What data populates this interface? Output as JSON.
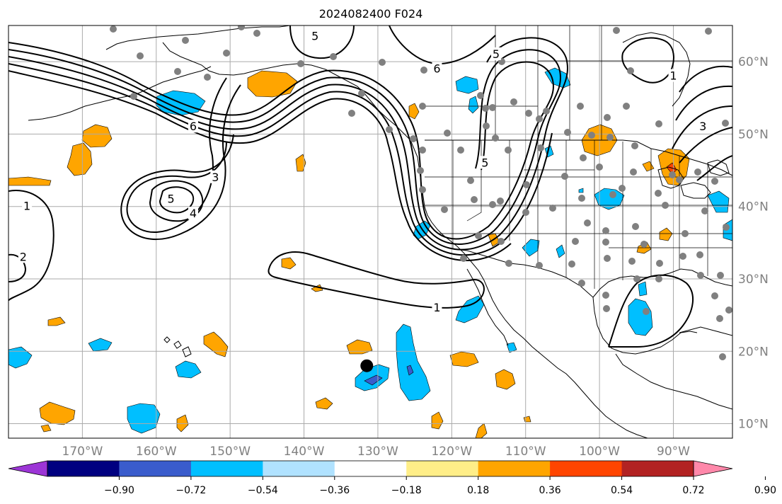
{
  "map": {
    "title": "2024082400 F024",
    "lon_range": [
      -180,
      -82
    ],
    "lat_range": [
      8,
      65
    ],
    "lat_ticks": [
      {
        "value": 10,
        "label": "10°N"
      },
      {
        "value": 20,
        "label": "20°N"
      },
      {
        "value": 30,
        "label": "30°N"
      },
      {
        "value": 40,
        "label": "40°N"
      },
      {
        "value": 50,
        "label": "50°N"
      },
      {
        "value": 60,
        "label": "60°N"
      }
    ],
    "lon_ticks": [
      {
        "value": -170,
        "label": "170°W"
      },
      {
        "value": -160,
        "label": "160°W"
      },
      {
        "value": -150,
        "label": "150°W"
      },
      {
        "value": -140,
        "label": "140°W"
      },
      {
        "value": -130,
        "label": "130°W"
      },
      {
        "value": -120,
        "label": "120°W"
      },
      {
        "value": -110,
        "label": "110°W"
      },
      {
        "value": -100,
        "label": "100°W"
      },
      {
        "value": -90,
        "label": "90°W"
      }
    ],
    "contour_labels": [
      {
        "text": "1",
        "lon": -177.5,
        "lat": 40.0
      },
      {
        "text": "2",
        "lon": -178.0,
        "lat": 33.0
      },
      {
        "text": "3",
        "lon": -152.0,
        "lat": 44.0
      },
      {
        "text": "4",
        "lon": -155.0,
        "lat": 39.0
      },
      {
        "text": "5",
        "lon": -158.0,
        "lat": 41.0
      },
      {
        "text": "6",
        "lon": -155.0,
        "lat": 51.0
      },
      {
        "text": "5",
        "lon": -138.5,
        "lat": 63.5
      },
      {
        "text": "6",
        "lon": -122.0,
        "lat": 59.0
      },
      {
        "text": "5",
        "lon": -114.0,
        "lat": 61.0
      },
      {
        "text": "5",
        "lon": -115.5,
        "lat": 46.0
      },
      {
        "text": "1",
        "lon": -122.0,
        "lat": 26.0
      },
      {
        "text": "1",
        "lon": -90.0,
        "lat": 58.0
      },
      {
        "text": "3",
        "lon": -86.0,
        "lat": 51.0
      }
    ],
    "marker": {
      "lon": -131.5,
      "lat": 18.0,
      "color": "#000000"
    }
  },
  "colorbar": {
    "colors": [
      "#9c35d6",
      "#000080",
      "#3a5ccc",
      "#00bfff",
      "#b0e2ff",
      "#ffffff",
      "#ffee88",
      "#ffa500",
      "#ff4500",
      "#b22222",
      "#ff88aa"
    ],
    "ticks": [
      "−0.90",
      "−0.72",
      "−0.54",
      "−0.36",
      "−0.18",
      "0.18",
      "0.36",
      "0.54",
      "0.72",
      "0.90"
    ]
  }
}
